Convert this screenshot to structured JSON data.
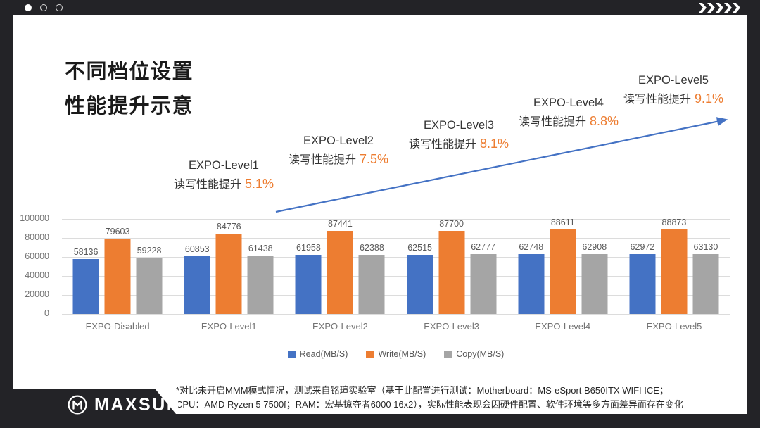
{
  "window": {
    "pagination_dots": {
      "count": 3,
      "active_index": 0
    },
    "chevrons_icon": {
      "count": 5
    }
  },
  "title": {
    "line1": "不同档位设置",
    "line2": "性能提升示意"
  },
  "annotations": [
    {
      "label": "EXPO-Level1",
      "prefix": "读写性能提升",
      "value": "5.1%"
    },
    {
      "label": "EXPO-Level2",
      "prefix": "读写性能提升",
      "value": "7.5%"
    },
    {
      "label": "EXPO-Level3",
      "prefix": "读写性能提升",
      "value": "8.1%"
    },
    {
      "label": "EXPO-Level4",
      "prefix": "读写性能提升",
      "value": "8.8%"
    },
    {
      "label": "EXPO-Level5",
      "prefix": "读写性能提升",
      "value": "9.1%"
    }
  ],
  "chart_data": {
    "type": "bar",
    "categories": [
      "EXPO-Disabled",
      "EXPO-Level1",
      "EXPO-Level2",
      "EXPO-Level3",
      "EXPO-Level4",
      "EXPO-Level5"
    ],
    "series": [
      {
        "name": "Read(MB/S)",
        "color": "#4472C4",
        "values": [
          58136,
          60853,
          61958,
          62515,
          62748,
          62972
        ]
      },
      {
        "name": "Write(MB/S)",
        "color": "#ED7D31",
        "values": [
          79603,
          84776,
          87441,
          87700,
          88611,
          88873
        ]
      },
      {
        "name": "Copy(MB/S)",
        "color": "#A5A5A5",
        "values": [
          59228,
          61438,
          62388,
          62777,
          62908,
          63130
        ]
      }
    ],
    "title": "",
    "xlabel": "",
    "ylabel": "",
    "ylim": [
      0,
      100000
    ],
    "yticks": [
      0,
      20000,
      40000,
      60000,
      80000,
      100000
    ],
    "grid": true,
    "legend_position": "bottom",
    "data_labels": true
  },
  "footer": {
    "note_line1": "*对比未开启MMM模式情况，测试来自铭瑄实验室（基于此配置进行测试：Motherboard：MS-eSport B650ITX WIFI ICE；",
    "note_line2": "CPU：AMD Ryzen 5 7500f；RAM：宏基掠夺者6000 16x2），实际性能表现会因硬件配置、软件环境等多方面差异而存在变化",
    "brand": "MAXSUN"
  },
  "colors": {
    "read_blue": "#4472C4",
    "write_orange": "#ED7D31",
    "copy_gray": "#A5A5A5",
    "accent_orange": "#ED7D31",
    "arrow_blue": "#4472C4",
    "frame_dark": "#232327"
  }
}
